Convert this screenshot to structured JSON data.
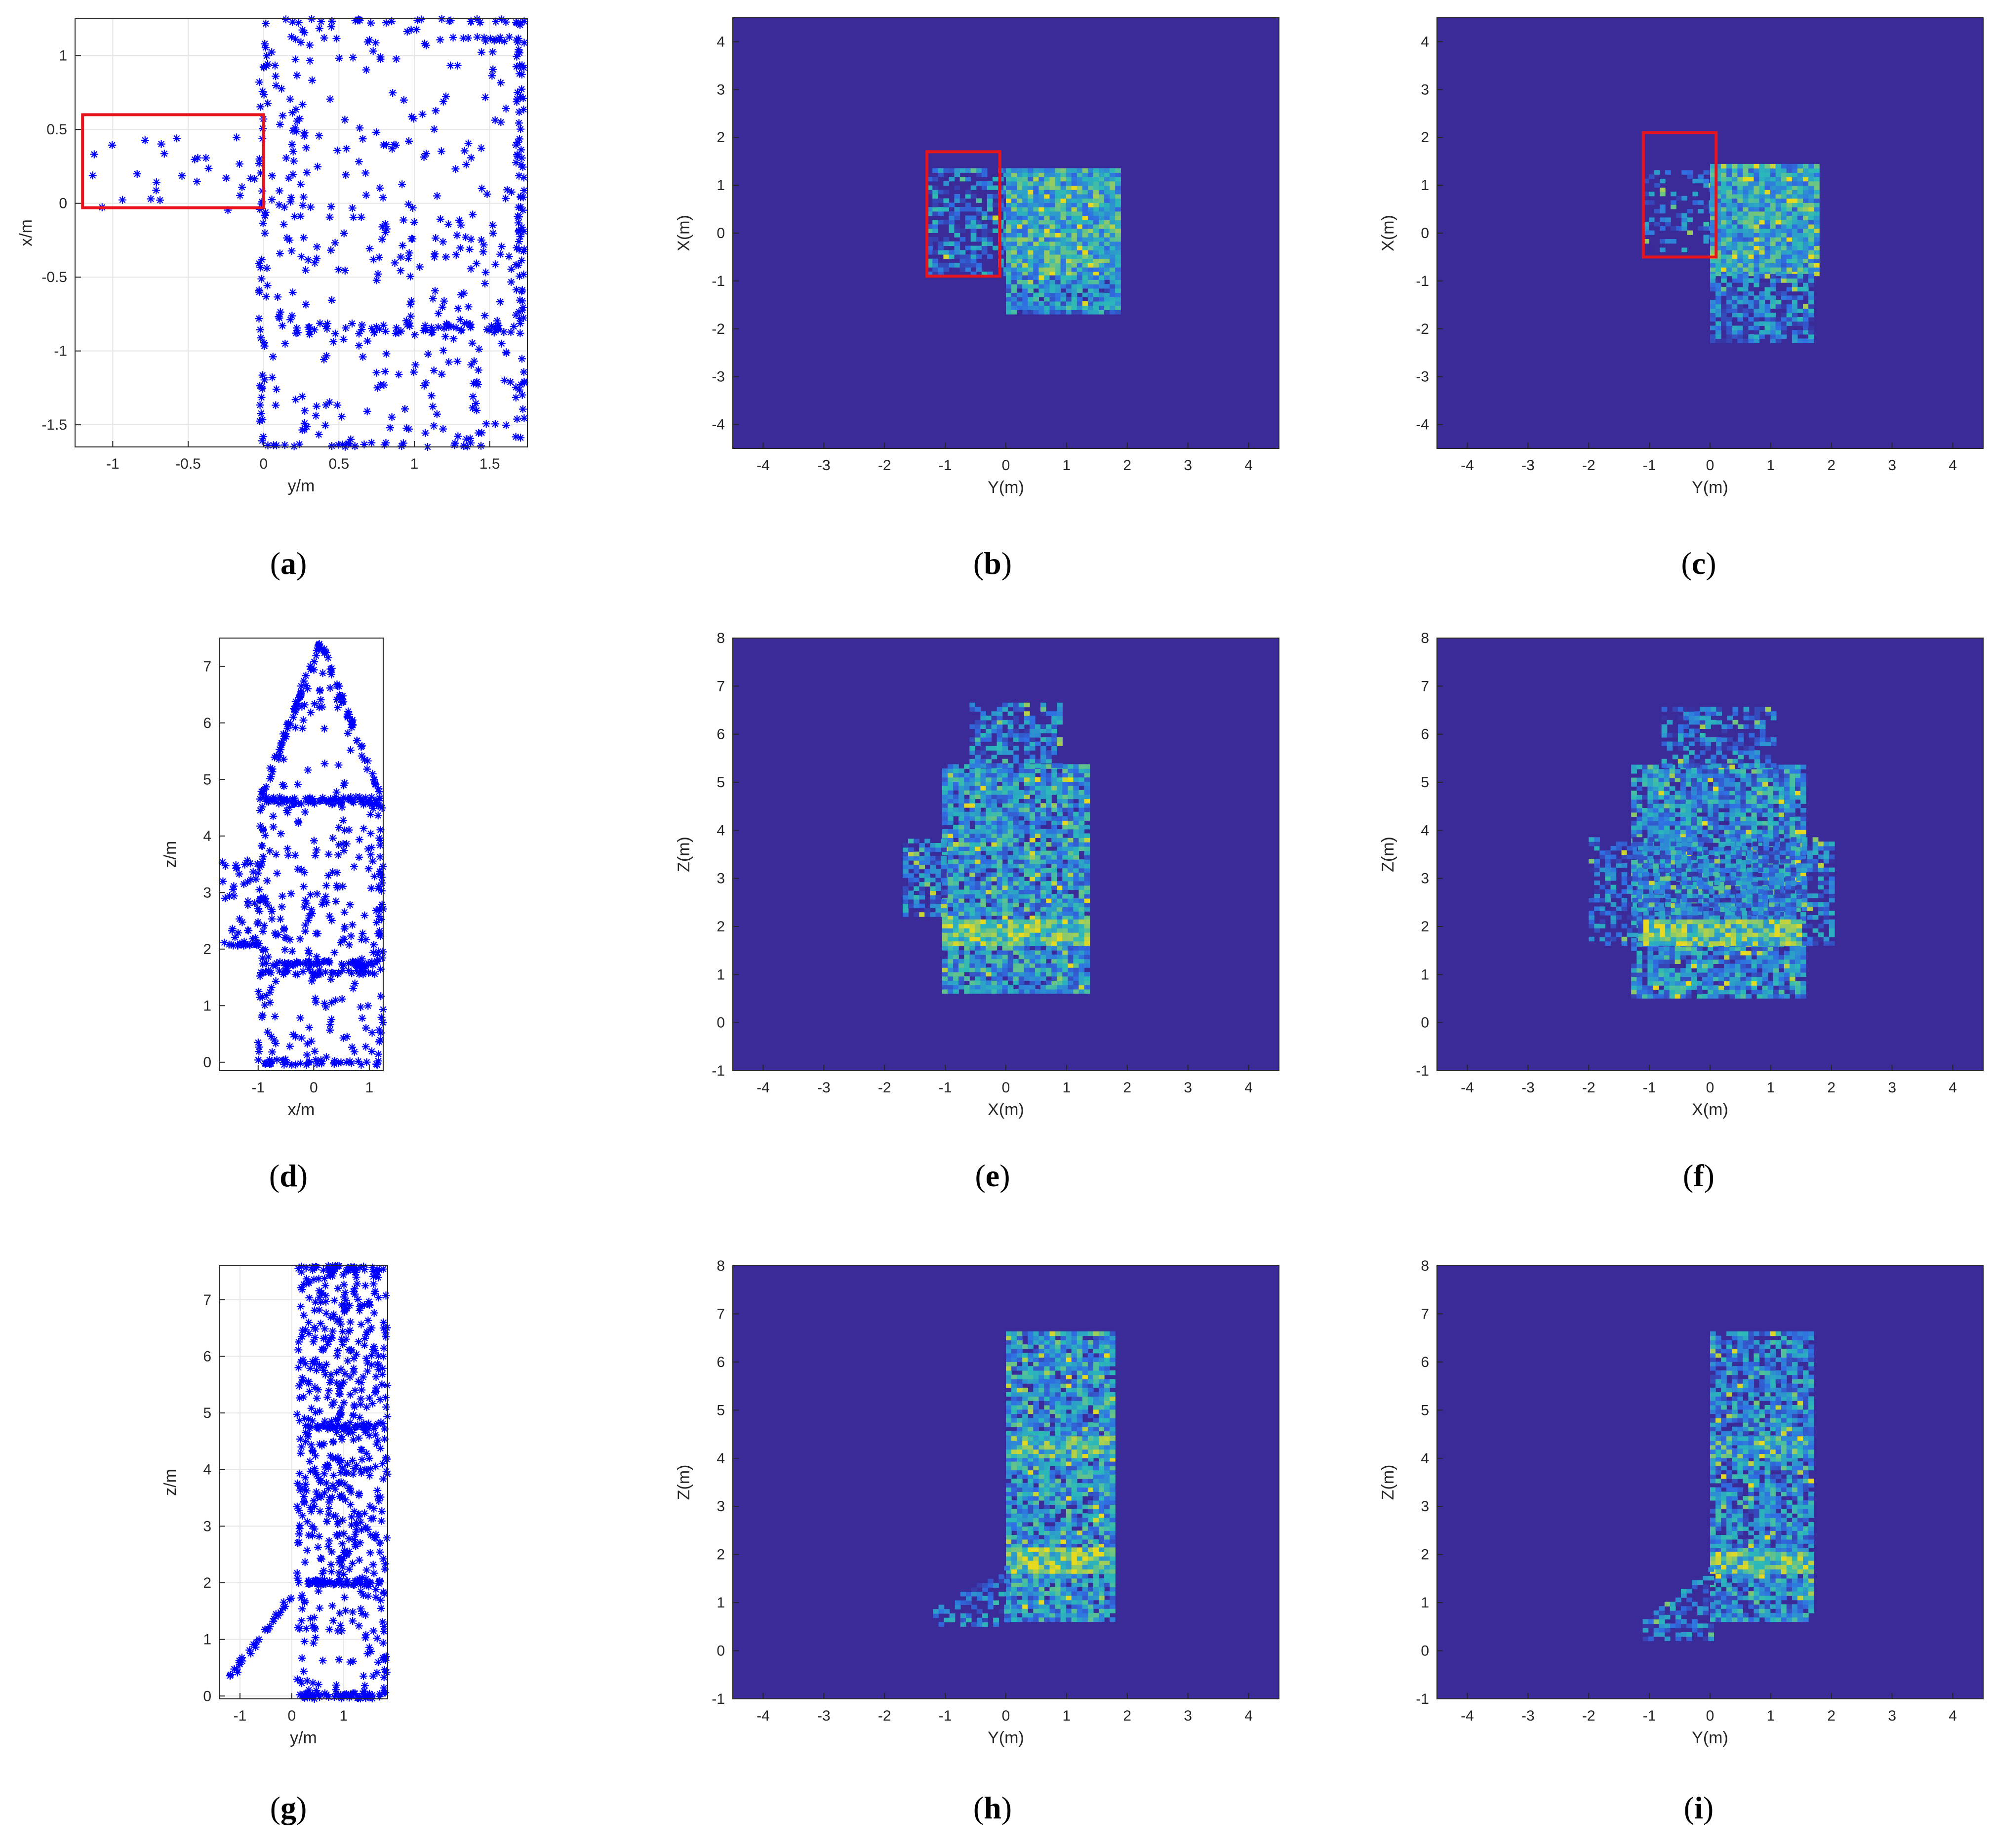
{
  "colors": {
    "scatter_marker": "#0000ff",
    "roi_box": "#e8141b",
    "heat_background": "#3a2b99",
    "heat_low": "#2f6fe4",
    "heat_mid": "#2bb9b9",
    "heat_high": "#e6d91f",
    "axis": "#262626",
    "grid": "#e6e6e6"
  },
  "chart_data": [
    {
      "id": "a",
      "caption": "a",
      "type": "scatter",
      "marker": "asterisk",
      "grid": true,
      "xlabel": "y/m",
      "ylabel": "x/m",
      "xlim": [
        -1.25,
        1.75
      ],
      "ylim": [
        -1.65,
        1.25
      ],
      "xticks": [
        "-1",
        "-0.5",
        "0",
        "0.5",
        "1",
        "1.5"
      ],
      "xtick_values": [
        -1,
        -0.5,
        0,
        0.5,
        1,
        1.5
      ],
      "yticks": [
        "-1.5",
        "-1",
        "-0.5",
        "0",
        "0.5",
        "1"
      ],
      "ytick_values": [
        -1.5,
        -1,
        -0.5,
        0,
        0.5,
        1
      ],
      "annotation_box": {
        "x": [
          -1.2,
          0.0
        ],
        "y": [
          -0.03,
          0.6
        ]
      },
      "shapes": [
        {
          "kind": "rect_outline",
          "x0": 0.0,
          "x1": 1.7,
          "y0": -1.65,
          "y1": 1.25,
          "n": 220,
          "jitter": 0.03
        },
        {
          "kind": "rect_outline",
          "x0": 0.2,
          "x1": 1.7,
          "y0": -0.85,
          "y1": 1.1,
          "n": 90,
          "jitter": 0.03
        },
        {
          "kind": "hline",
          "x0": 0.2,
          "x1": 1.7,
          "y": -0.85,
          "n": 40,
          "jitter": 0.04
        },
        {
          "kind": "fill",
          "x0": 0.05,
          "x1": 1.65,
          "y0": -1.6,
          "y1": 1.2,
          "n": 300
        },
        {
          "kind": "fill",
          "x0": -1.2,
          "x1": -0.05,
          "y0": -0.05,
          "y1": 0.45,
          "n": 28
        }
      ]
    },
    {
      "id": "b",
      "caption": "b",
      "type": "heatmap",
      "xlabel": "Y(m)",
      "ylabel": "X(m)",
      "xlim": [
        -4.5,
        4.5
      ],
      "ylim": [
        -4.5,
        4.5
      ],
      "xticks": [
        "-4",
        "-3",
        "-2",
        "-1",
        "0",
        "1",
        "2",
        "3",
        "4"
      ],
      "xtick_values": [
        -4,
        -3,
        -2,
        -1,
        0,
        1,
        2,
        3,
        4
      ],
      "yticks": [
        "-4",
        "-3",
        "-2",
        "-1",
        "0",
        "1",
        "2",
        "3",
        "4"
      ],
      "ytick_values": [
        -4,
        -3,
        -2,
        -1,
        0,
        1,
        2,
        3,
        4
      ],
      "annotation_box": {
        "x": [
          -1.3,
          -0.1
        ],
        "y": [
          -0.9,
          1.7
        ]
      },
      "regions": [
        {
          "x0": -1.3,
          "x1": 0.0,
          "y0": -0.9,
          "y1": 1.3,
          "density": 0.55,
          "mean": 0.35
        },
        {
          "x0": 0.0,
          "x1": 1.85,
          "y0": -0.9,
          "y1": 1.3,
          "density": 1.0,
          "mean": 0.55
        },
        {
          "x0": 0.0,
          "x1": 1.85,
          "y0": -1.7,
          "y1": -0.9,
          "density": 0.9,
          "mean": 0.4
        }
      ]
    },
    {
      "id": "c",
      "caption": "c",
      "type": "heatmap",
      "xlabel": "Y(m)",
      "ylabel": "X(m)",
      "xlim": [
        -4.5,
        4.5
      ],
      "ylim": [
        -4.5,
        4.5
      ],
      "xticks": [
        "-4",
        "-3",
        "-2",
        "-1",
        "0",
        "1",
        "2",
        "3",
        "4"
      ],
      "xtick_values": [
        -4,
        -3,
        -2,
        -1,
        0,
        1,
        2,
        3,
        4
      ],
      "yticks": [
        "-4",
        "-3",
        "-2",
        "-1",
        "0",
        "1",
        "2",
        "3",
        "4"
      ],
      "ytick_values": [
        -4,
        -3,
        -2,
        -1,
        0,
        1,
        2,
        3,
        4
      ],
      "annotation_box": {
        "x": [
          -1.1,
          0.1
        ],
        "y": [
          -0.5,
          2.1
        ]
      },
      "regions": [
        {
          "x0": -1.1,
          "x1": 0.0,
          "y0": -0.4,
          "y1": 1.3,
          "density": 0.35,
          "mean": 0.25
        },
        {
          "x0": 0.0,
          "x1": 1.8,
          "y0": -0.9,
          "y1": 1.4,
          "density": 1.0,
          "mean": 0.5
        },
        {
          "x0": 0.0,
          "x1": 1.7,
          "y0": -2.3,
          "y1": -0.9,
          "density": 0.75,
          "mean": 0.32
        }
      ]
    },
    {
      "id": "d",
      "caption": "d",
      "type": "scatter",
      "marker": "asterisk",
      "grid": false,
      "xlabel": "x/m",
      "ylabel": "z/m",
      "xlim": [
        -1.7,
        1.25
      ],
      "ylim": [
        -0.15,
        7.5
      ],
      "xticks": [
        "-1",
        "0",
        "1"
      ],
      "xtick_values": [
        -1,
        0,
        1
      ],
      "yticks": [
        "0",
        "1",
        "2",
        "3",
        "4",
        "5",
        "6",
        "7"
      ],
      "ytick_values": [
        0,
        1,
        2,
        3,
        4,
        5,
        6,
        7
      ],
      "shapes": [
        {
          "kind": "rect_outline",
          "x0": -0.95,
          "x1": 1.2,
          "y0": 0.0,
          "y1": 4.6,
          "n": 150,
          "jitter": 0.05
        },
        {
          "kind": "hline",
          "x0": -0.95,
          "x1": 1.2,
          "y": 4.65,
          "n": 45,
          "jitter": 0.04
        },
        {
          "kind": "hline",
          "x0": -0.95,
          "x1": 1.2,
          "y": 1.75,
          "n": 55,
          "jitter": 0.05
        },
        {
          "kind": "hline",
          "x0": -0.95,
          "x1": 1.2,
          "y": 1.6,
          "n": 35,
          "jitter": 0.05
        },
        {
          "kind": "triangle",
          "x0": -0.95,
          "x1": 1.2,
          "y0": 4.65,
          "apex_x": 0.12,
          "apex_y": 7.45,
          "n": 140
        },
        {
          "kind": "fill",
          "x0": -0.9,
          "x1": 1.15,
          "y0": 0.0,
          "y1": 4.6,
          "n": 190
        },
        {
          "kind": "fill",
          "x0": -1.65,
          "x1": -0.95,
          "y0": 2.05,
          "y1": 3.6,
          "n": 45
        },
        {
          "kind": "hline",
          "x0": -1.65,
          "x1": -0.95,
          "y": 2.08,
          "n": 16,
          "jitter": 0.02
        }
      ]
    },
    {
      "id": "e",
      "caption": "e",
      "type": "heatmap",
      "xlabel": "X(m)",
      "ylabel": "Z(m)",
      "xlim": [
        -4.5,
        4.5
      ],
      "ylim": [
        -1,
        8
      ],
      "xticks": [
        "-4",
        "-3",
        "-2",
        "-1",
        "0",
        "1",
        "2",
        "3",
        "4"
      ],
      "xtick_values": [
        -4,
        -3,
        -2,
        -1,
        0,
        1,
        2,
        3,
        4
      ],
      "yticks": [
        "-1",
        "0",
        "1",
        "2",
        "3",
        "4",
        "5",
        "6",
        "7",
        "8"
      ],
      "ytick_values": [
        -1,
        0,
        1,
        2,
        3,
        4,
        5,
        6,
        7,
        8
      ],
      "regions": [
        {
          "x0": -1.05,
          "x1": 1.3,
          "y0": 0.6,
          "y1": 5.3,
          "density": 0.9,
          "mean": 0.45
        },
        {
          "x0": -1.7,
          "x1": -1.05,
          "y0": 2.2,
          "y1": 3.8,
          "density": 0.75,
          "mean": 0.35
        },
        {
          "x0": -0.6,
          "x1": 0.9,
          "y0": 5.3,
          "y1": 6.6,
          "density": 0.6,
          "mean": 0.35
        },
        {
          "x0": -1.05,
          "x1": 1.3,
          "y0": 1.6,
          "y1": 2.1,
          "density": 1.0,
          "mean": 0.7
        }
      ]
    },
    {
      "id": "f",
      "caption": "f",
      "type": "heatmap",
      "xlabel": "X(m)",
      "ylabel": "Z(m)",
      "xlim": [
        -4.5,
        4.5
      ],
      "ylim": [
        -1,
        8
      ],
      "xticks": [
        "-4",
        "-3",
        "-2",
        "-1",
        "0",
        "1",
        "2",
        "3",
        "4"
      ],
      "xtick_values": [
        -4,
        -3,
        -2,
        -1,
        0,
        1,
        2,
        3,
        4
      ],
      "yticks": [
        "-1",
        "0",
        "1",
        "2",
        "3",
        "4",
        "5",
        "6",
        "7",
        "8"
      ],
      "ytick_values": [
        -1,
        0,
        1,
        2,
        3,
        4,
        5,
        6,
        7,
        8
      ],
      "regions": [
        {
          "x0": -1.3,
          "x1": 1.5,
          "y0": 0.5,
          "y1": 5.3,
          "density": 0.9,
          "mean": 0.4
        },
        {
          "x0": -2.0,
          "x1": 2.0,
          "y0": 1.6,
          "y1": 3.8,
          "density": 0.55,
          "mean": 0.3
        },
        {
          "x0": -0.8,
          "x1": 1.0,
          "y0": 5.3,
          "y1": 6.5,
          "density": 0.55,
          "mean": 0.3
        },
        {
          "x0": -1.1,
          "x1": 1.5,
          "y0": 1.6,
          "y1": 2.1,
          "density": 1.0,
          "mean": 0.7
        }
      ]
    },
    {
      "id": "g",
      "caption": "g",
      "type": "scatter",
      "marker": "asterisk",
      "grid": true,
      "xlabel": "y/m",
      "ylabel": "z/m",
      "xlim": [
        -1.4,
        1.85
      ],
      "ylim": [
        -0.05,
        7.6
      ],
      "xticks": [
        "-1",
        "0",
        "1"
      ],
      "xtick_values": [
        -1,
        0,
        1
      ],
      "yticks": [
        "0",
        "1",
        "2",
        "3",
        "4",
        "5",
        "6",
        "7"
      ],
      "ytick_values": [
        0,
        1,
        2,
        3,
        4,
        5,
        6,
        7
      ],
      "shapes": [
        {
          "kind": "rect_outline",
          "x0": 0.15,
          "x1": 1.8,
          "y0": 0.0,
          "y1": 7.55,
          "n": 170,
          "jitter": 0.05
        },
        {
          "kind": "hline",
          "x0": 0.3,
          "x1": 1.7,
          "y": 4.75,
          "n": 40,
          "jitter": 0.04
        },
        {
          "kind": "hline",
          "x0": 0.3,
          "x1": 1.7,
          "y": 2.0,
          "n": 55,
          "jitter": 0.05
        },
        {
          "kind": "fill",
          "x0": 0.2,
          "x1": 1.75,
          "y0": 2.0,
          "y1": 7.5,
          "n": 430
        },
        {
          "kind": "fill",
          "x0": 0.2,
          "x1": 1.75,
          "y0": 0.0,
          "y1": 2.0,
          "n": 70
        },
        {
          "kind": "line",
          "x0": -1.3,
          "y0": 0.2,
          "x1": 0.05,
          "y1": 1.85,
          "n": 30,
          "jitter": 0.05
        }
      ]
    },
    {
      "id": "h",
      "caption": "h",
      "type": "heatmap",
      "xlabel": "Y(m)",
      "ylabel": "Z(m)",
      "xlim": [
        -4.5,
        4.5
      ],
      "ylim": [
        -1,
        8
      ],
      "xticks": [
        "-4",
        "-3",
        "-2",
        "-1",
        "0",
        "1",
        "2",
        "3",
        "4"
      ],
      "xtick_values": [
        -4,
        -3,
        -2,
        -1,
        0,
        1,
        2,
        3,
        4
      ],
      "yticks": [
        "-1",
        "0",
        "1",
        "2",
        "3",
        "4",
        "5",
        "6",
        "7",
        "8"
      ],
      "ytick_values": [
        -1,
        0,
        1,
        2,
        3,
        4,
        5,
        6,
        7,
        8
      ],
      "regions": [
        {
          "x0": 0.0,
          "x1": 1.8,
          "y0": 0.6,
          "y1": 6.6,
          "density": 0.9,
          "mean": 0.45
        },
        {
          "x0": 0.0,
          "x1": 1.8,
          "y0": 4.0,
          "y1": 4.4,
          "density": 1.0,
          "mean": 0.65
        },
        {
          "x0": 0.0,
          "x1": 1.8,
          "y0": 1.6,
          "y1": 2.1,
          "density": 1.0,
          "mean": 0.75
        },
        {
          "x0": -1.2,
          "x1": 0.0,
          "y0": 0.5,
          "y1": 1.7,
          "density": 0.6,
          "mean": 0.35,
          "skew": "ramp"
        }
      ]
    },
    {
      "id": "i",
      "caption": "i",
      "type": "heatmap",
      "xlabel": "Y(m)",
      "ylabel": "Z(m)",
      "xlim": [
        -4.5,
        4.5
      ],
      "ylim": [
        -1,
        8
      ],
      "xticks": [
        "-4",
        "-3",
        "-2",
        "-1",
        "0",
        "1",
        "2",
        "3",
        "4"
      ],
      "xtick_values": [
        -4,
        -3,
        -2,
        -1,
        0,
        1,
        2,
        3,
        4
      ],
      "yticks": [
        "-1",
        "0",
        "1",
        "2",
        "3",
        "4",
        "5",
        "6",
        "7",
        "8"
      ],
      "ytick_values": [
        -1,
        0,
        1,
        2,
        3,
        4,
        5,
        6,
        7,
        8
      ],
      "regions": [
        {
          "x0": 0.0,
          "x1": 1.7,
          "y0": 0.6,
          "y1": 6.6,
          "density": 0.85,
          "mean": 0.4
        },
        {
          "x0": 0.0,
          "x1": 1.7,
          "y0": 4.0,
          "y1": 4.4,
          "density": 0.95,
          "mean": 0.55
        },
        {
          "x0": 0.0,
          "x1": 1.7,
          "y0": 1.6,
          "y1": 2.0,
          "density": 1.0,
          "mean": 0.7
        },
        {
          "x0": -1.2,
          "x1": 0.0,
          "y0": 0.2,
          "y1": 1.7,
          "density": 0.55,
          "mean": 0.3,
          "skew": "ramp"
        }
      ]
    }
  ]
}
